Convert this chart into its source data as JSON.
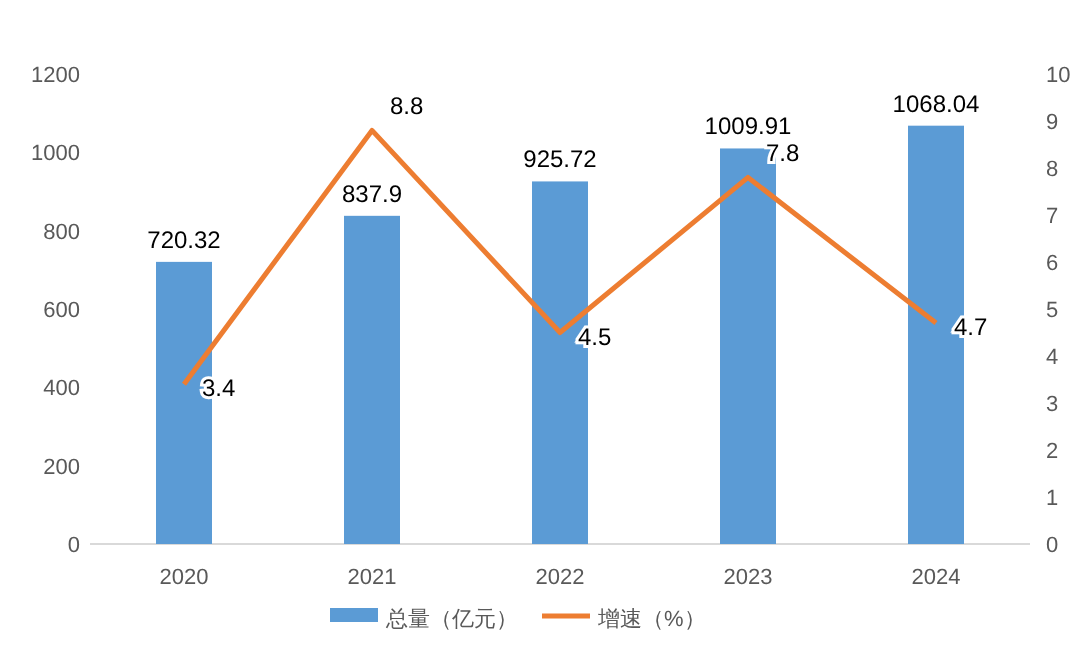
{
  "chart_data": {
    "type": "bar",
    "categories": [
      "2020",
      "2021",
      "2022",
      "2023",
      "2024"
    ],
    "series": [
      {
        "name": "总量（亿元）",
        "color": "#5b9bd5",
        "values": [
          720.32,
          837.9,
          925.72,
          1009.91,
          1068.04
        ]
      },
      {
        "name": "增速（%）",
        "type": "line",
        "axis": "y2",
        "color": "#ed7d31",
        "values": [
          3.4,
          8.8,
          4.5,
          7.8,
          4.7
        ]
      }
    ],
    "ylim": [
      0,
      1200
    ],
    "yticks": [
      0,
      200,
      400,
      600,
      800,
      1000,
      1200
    ],
    "y2lim": [
      0,
      10
    ],
    "y2ticks": [
      0,
      1,
      2,
      3,
      4,
      5,
      6,
      7,
      8,
      9,
      10
    ],
    "data_labels": true,
    "legend": "bottom",
    "grid": false
  }
}
